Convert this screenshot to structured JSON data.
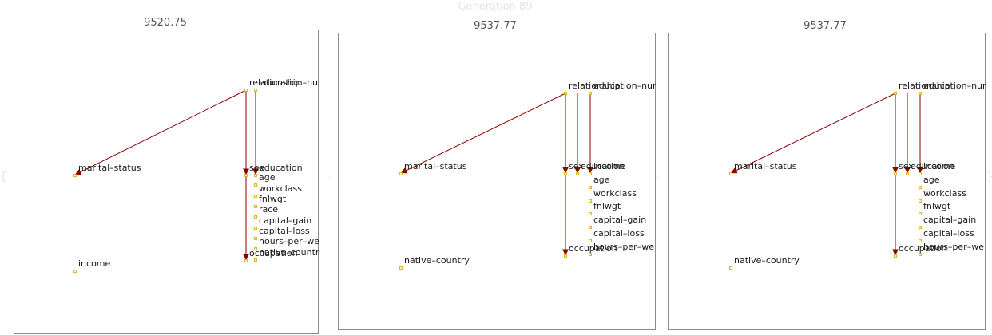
{
  "generation_title": "Generation 89",
  "colors": {
    "edge": "#8b0000",
    "node_fill": "#fff6c2",
    "node_stroke": "#d9a400",
    "frame": "#8c8c8c"
  },
  "panels": [
    {
      "score": "9520.75",
      "nodes": [
        {
          "id": "relationship",
          "label": "relationship"
        },
        {
          "id": "education-num",
          "label": "education–num"
        },
        {
          "id": "marital-status",
          "label": "marital–status"
        },
        {
          "id": "sex",
          "label": "sex"
        },
        {
          "id": "education",
          "label": "education"
        },
        {
          "id": "age",
          "label": "age"
        },
        {
          "id": "workclass",
          "label": "workclass"
        },
        {
          "id": "fnlwgt",
          "label": "fnlwgt"
        },
        {
          "id": "race",
          "label": "race"
        },
        {
          "id": "capital-gain",
          "label": "capital–gain"
        },
        {
          "id": "capital-loss",
          "label": "capital–loss"
        },
        {
          "id": "hours-per-week",
          "label": "hours–per–we"
        },
        {
          "id": "occupation",
          "label": "occupation"
        },
        {
          "id": "native-country",
          "label": "native–countr"
        },
        {
          "id": "income",
          "label": "income"
        }
      ],
      "edges": [
        {
          "from": "relationship",
          "to": "marital-status"
        },
        {
          "from": "relationship",
          "to": "sex"
        },
        {
          "from": "relationship",
          "to": "occupation"
        },
        {
          "from": "education-num",
          "to": "education"
        }
      ]
    },
    {
      "score": "9537.77",
      "nodes": [
        {
          "id": "relationship",
          "label": "relationship"
        },
        {
          "id": "education-num",
          "label": "education–num"
        },
        {
          "id": "marital-status",
          "label": "marital–status"
        },
        {
          "id": "sex",
          "label": "sex"
        },
        {
          "id": "education",
          "label": "education"
        },
        {
          "id": "income",
          "label": "income"
        },
        {
          "id": "age",
          "label": "age"
        },
        {
          "id": "workclass",
          "label": "workclass"
        },
        {
          "id": "fnlwgt",
          "label": "fnlwgt"
        },
        {
          "id": "capital-gain",
          "label": "capital–gain"
        },
        {
          "id": "capital-loss",
          "label": "capital–loss"
        },
        {
          "id": "hours-per-week",
          "label": "hours–per–we"
        },
        {
          "id": "occupation",
          "label": "occupation"
        },
        {
          "id": "native-country",
          "label": "native–country"
        }
      ],
      "edges": [
        {
          "from": "relationship",
          "to": "marital-status"
        },
        {
          "from": "relationship",
          "to": "sex"
        },
        {
          "from": "relationship",
          "to": "occupation"
        },
        {
          "from": "education-num",
          "to": "education"
        },
        {
          "from": "education-num",
          "to": "income"
        }
      ]
    },
    {
      "score": "9537.77",
      "nodes": [
        {
          "id": "relationship",
          "label": "relationship"
        },
        {
          "id": "education-num",
          "label": "education–num"
        },
        {
          "id": "marital-status",
          "label": "marital–status"
        },
        {
          "id": "sex",
          "label": "sex"
        },
        {
          "id": "education",
          "label": "education"
        },
        {
          "id": "income",
          "label": "income"
        },
        {
          "id": "age",
          "label": "age"
        },
        {
          "id": "workclass",
          "label": "workclass"
        },
        {
          "id": "fnlwgt",
          "label": "fnlwgt"
        },
        {
          "id": "capital-gain",
          "label": "capital–gain"
        },
        {
          "id": "capital-loss",
          "label": "capital–loss"
        },
        {
          "id": "hours-per-week",
          "label": "hours–per–we"
        },
        {
          "id": "occupation",
          "label": "occupation"
        },
        {
          "id": "native-country",
          "label": "native–country"
        }
      ],
      "edges": [
        {
          "from": "relationship",
          "to": "marital-status"
        },
        {
          "from": "relationship",
          "to": "sex"
        },
        {
          "from": "relationship",
          "to": "occupation"
        },
        {
          "from": "education-num",
          "to": "education"
        },
        {
          "from": "education-num",
          "to": "income"
        }
      ]
    }
  ]
}
